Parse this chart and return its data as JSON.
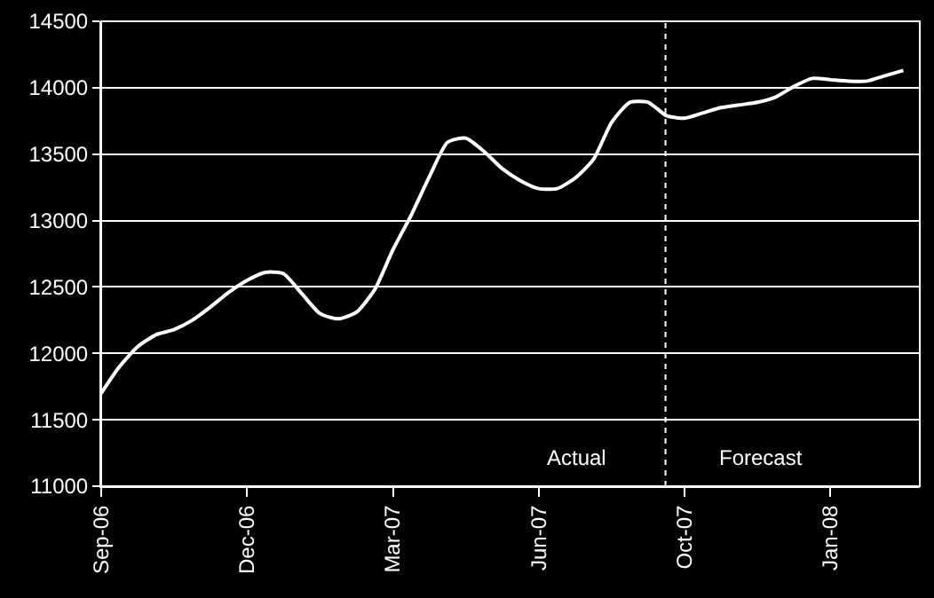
{
  "chart_data": {
    "type": "line",
    "categories": [
      "Sep-06",
      null,
      null,
      null,
      null,
      null,
      null,
      null,
      "Dec-06",
      null,
      null,
      null,
      null,
      null,
      null,
      null,
      "Mar-07",
      null,
      null,
      null,
      null,
      null,
      null,
      null,
      "Jun-07",
      null,
      null,
      null,
      null,
      null,
      null,
      null,
      "Oct-07",
      null,
      null,
      null,
      null,
      null,
      null,
      null,
      "Jan-08",
      null,
      null,
      null,
      null
    ],
    "series": [
      {
        "color": "#ffffff",
        "values": [
          11700,
          11900,
          12050,
          12140,
          12180,
          12250,
          12350,
          12460,
          12550,
          12610,
          12600,
          12450,
          12300,
          12260,
          12310,
          12480,
          12780,
          13040,
          13330,
          13590,
          13620,
          13520,
          13390,
          13300,
          13240,
          13240,
          13320,
          13460,
          13740,
          13890,
          13890,
          13790,
          13770,
          13810,
          13850,
          13870,
          13890,
          13930,
          14010,
          14070,
          14060,
          14050,
          14050,
          14090,
          14130
        ]
      }
    ],
    "ylim": [
      11000,
      14500
    ],
    "yticks": [
      11000,
      11500,
      12000,
      12500,
      13000,
      13500,
      14000,
      14500
    ],
    "grid": "y",
    "marker": "none",
    "line_style": "solid",
    "annotations": [
      "Actual",
      "Forecast"
    ]
  }
}
